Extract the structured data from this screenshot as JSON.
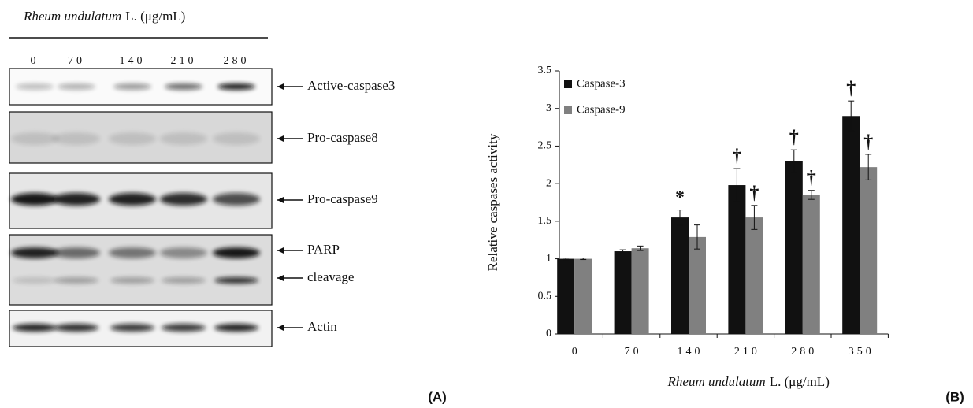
{
  "blot": {
    "title": [
      "Rheum undulatum",
      "L. (μg/mL)"
    ],
    "lanes": [
      "0",
      "70",
      "140",
      "210",
      "280"
    ],
    "proteins": [
      "Active-caspase3",
      "Pro-caspase8",
      "Pro-caspase9",
      "PARP",
      "cleavage",
      "Actin"
    ],
    "panel": "(A)"
  },
  "chart_data": {
    "type": "bar",
    "panel": "(B)",
    "x_label": [
      "Rheum undulatum",
      "L. (μg/mL)"
    ],
    "y_label": "Relative caspases activity",
    "categories": [
      "0",
      "70",
      "140",
      "210",
      "280",
      "350"
    ],
    "series": [
      {
        "name": "Caspase-3",
        "color": "#111111",
        "values": [
          1.0,
          1.1,
          1.55,
          1.98,
          2.3,
          2.9
        ],
        "errors": [
          0.01,
          0.02,
          0.1,
          0.22,
          0.15,
          0.2
        ],
        "markers": [
          null,
          null,
          "*",
          "†",
          "†",
          "†"
        ]
      },
      {
        "name": "Caspase-9",
        "color": "#808080",
        "values": [
          1.0,
          1.14,
          1.29,
          1.55,
          1.85,
          2.22
        ],
        "errors": [
          0.01,
          0.03,
          0.16,
          0.16,
          0.06,
          0.17
        ],
        "markers": [
          null,
          null,
          null,
          "†",
          "†",
          "†"
        ]
      }
    ],
    "ylim": [
      0,
      3.5
    ],
    "yticks": [
      0,
      0.5,
      1,
      1.5,
      2,
      2.5,
      3,
      3.5
    ],
    "legend": "upper-left"
  }
}
